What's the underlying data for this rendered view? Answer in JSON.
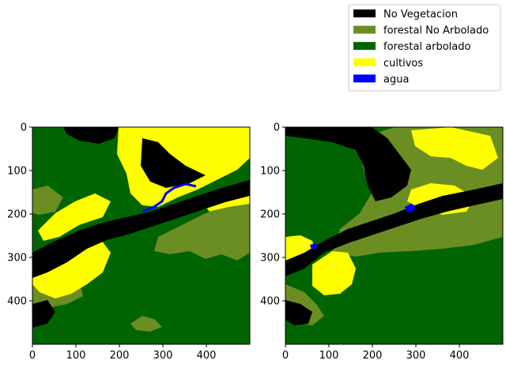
{
  "chart_data": {
    "type": "heatmap",
    "description_free": true,
    "legend": {
      "placement": "top-right",
      "entries": [
        {
          "label": "No Vegetacion",
          "color": "#000000"
        },
        {
          "label": "forestal No Arbolado",
          "color": "#6b8e23"
        },
        {
          "label": "forestal arbolado",
          "color": "#006400"
        },
        {
          "label": "cultivos",
          "color": "#ffff00"
        },
        {
          "label": "agua",
          "color": "#0000ff"
        }
      ]
    },
    "panels": [
      {
        "xlim": [
          0,
          500
        ],
        "ylim": [
          500,
          0
        ],
        "xticks": [
          0,
          100,
          200,
          300,
          400
        ],
        "yticks": [
          0,
          100,
          200,
          300,
          400
        ],
        "grid": false
      },
      {
        "xlim": [
          0,
          500
        ],
        "ylim": [
          500,
          0
        ],
        "xticks": [
          0,
          100,
          200,
          300,
          400
        ],
        "yticks": [
          0,
          100,
          200,
          300,
          400
        ],
        "grid": false
      }
    ]
  }
}
